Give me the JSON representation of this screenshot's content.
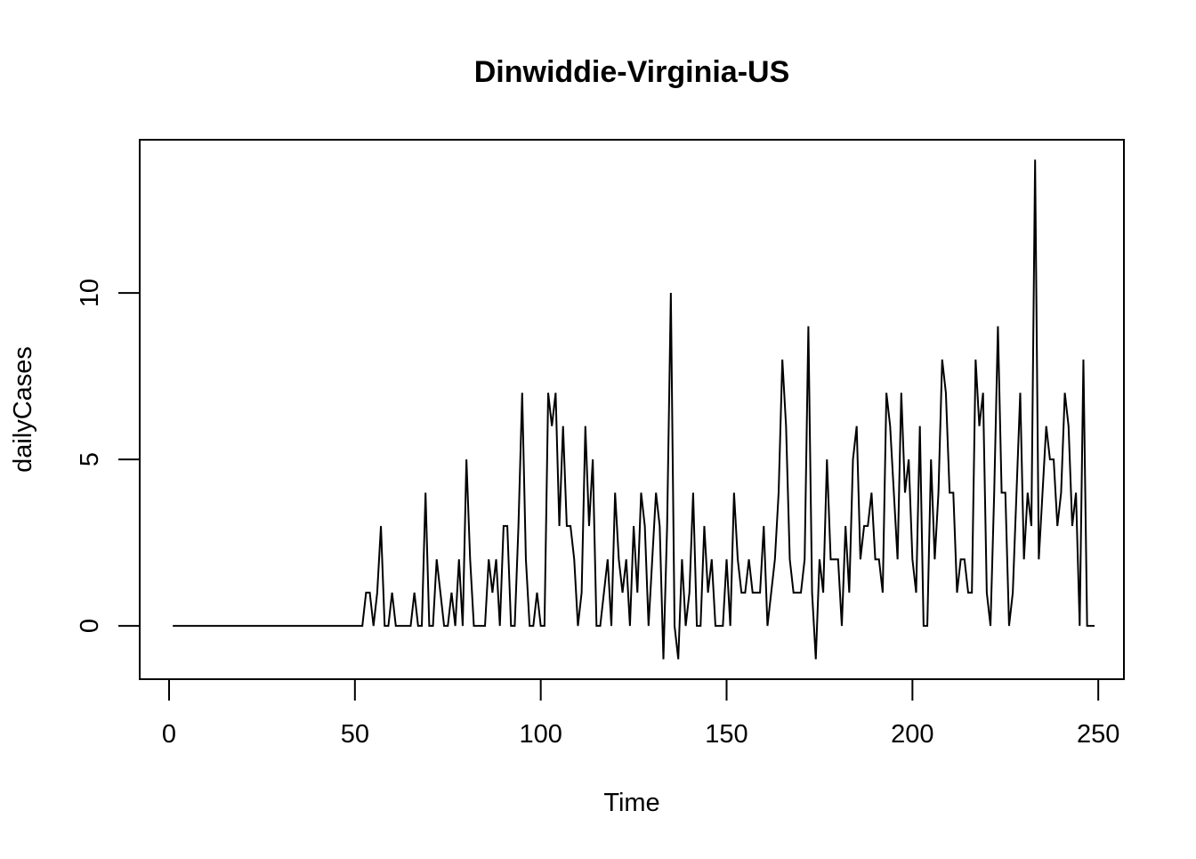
{
  "chart_data": {
    "type": "line",
    "title": "Dinwiddie-Virginia-US",
    "xlabel": "Time",
    "ylabel": "dailyCases",
    "xlim": [
      -7.9,
      256.9
    ],
    "ylim": [
      -1.6,
      14.6
    ],
    "xticks": [
      0,
      50,
      100,
      150,
      200,
      250
    ],
    "yticks": [
      0,
      5,
      10
    ],
    "grid": false,
    "legend": "none",
    "line_color": "#000000",
    "series": [
      {
        "x_start": 1,
        "values": [
          0,
          0,
          0,
          0,
          0,
          0,
          0,
          0,
          0,
          0,
          0,
          0,
          0,
          0,
          0,
          0,
          0,
          0,
          0,
          0,
          0,
          0,
          0,
          0,
          0,
          0,
          0,
          0,
          0,
          0,
          0,
          0,
          0,
          0,
          0,
          0,
          0,
          0,
          0,
          0,
          0,
          0,
          0,
          0,
          0,
          0,
          0,
          0,
          0,
          0,
          0,
          0,
          1,
          1,
          0,
          1,
          3,
          0,
          0,
          1,
          0,
          0,
          0,
          0,
          0,
          1,
          0,
          0,
          4,
          0,
          0,
          2,
          1,
          0,
          0,
          1,
          0,
          2,
          0,
          5,
          2,
          0,
          0,
          0,
          0,
          2,
          1,
          2,
          0,
          3,
          3,
          0,
          0,
          3,
          7,
          2,
          0,
          0,
          1,
          0,
          0,
          7,
          6,
          7,
          3,
          6,
          3,
          3,
          2,
          0,
          1,
          6,
          3,
          5,
          0,
          0,
          1,
          2,
          0,
          4,
          2,
          1,
          2,
          0,
          3,
          1,
          4,
          3,
          0,
          2,
          4,
          3,
          -1,
          3,
          10,
          0,
          -1,
          2,
          0,
          1,
          4,
          0,
          0,
          3,
          1,
          2,
          0,
          0,
          0,
          2,
          0,
          4,
          2,
          1,
          1,
          2,
          1,
          1,
          1,
          3,
          0,
          1,
          2,
          4,
          8,
          6,
          2,
          1,
          1,
          1,
          2,
          9,
          1,
          -1,
          2,
          1,
          5,
          2,
          2,
          2,
          0,
          3,
          1,
          5,
          6,
          2,
          3,
          3,
          4,
          2,
          2,
          1,
          7,
          6,
          4,
          2,
          7,
          4,
          5,
          2,
          1,
          6,
          0,
          0,
          5,
          2,
          4,
          8,
          7,
          4,
          4,
          1,
          2,
          2,
          1,
          1,
          8,
          6,
          7,
          1,
          0,
          4,
          9,
          4,
          4,
          0,
          1,
          4,
          7,
          2,
          4,
          3,
          14,
          2,
          4,
          6,
          5,
          5,
          3,
          4,
          7,
          6,
          3,
          4,
          0,
          8,
          0,
          0,
          0
        ]
      }
    ]
  }
}
